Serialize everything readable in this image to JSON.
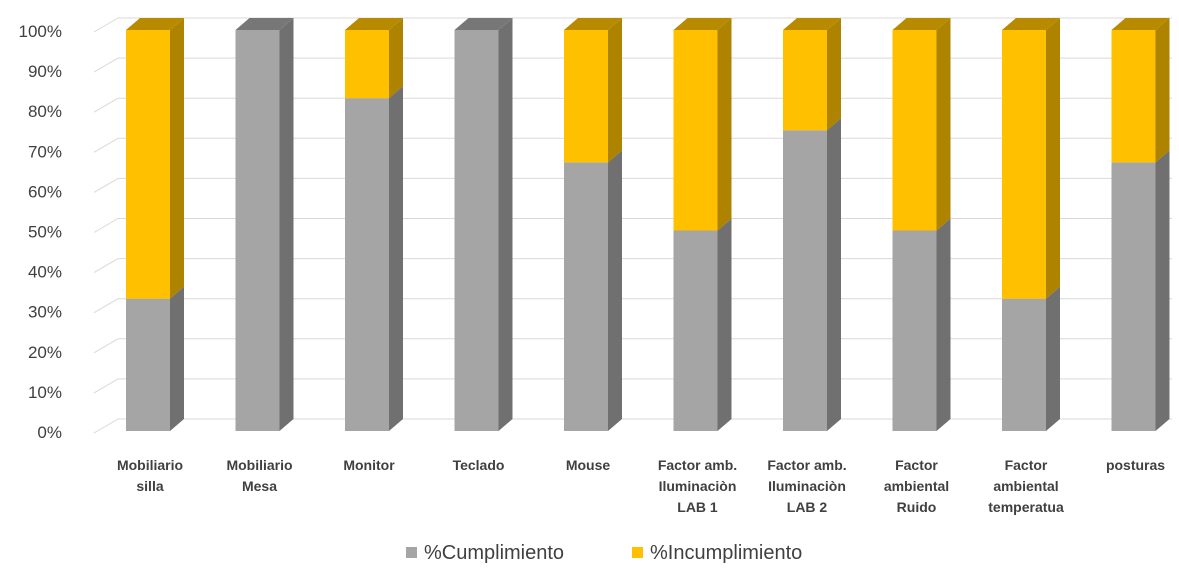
{
  "chart_data": {
    "type": "bar",
    "stacked": true,
    "percent_stacked": true,
    "three_d": true,
    "categories": [
      [
        "Mobiliario",
        "silla"
      ],
      [
        "Mobiliario",
        "Mesa"
      ],
      [
        "Monitor"
      ],
      [
        "Teclado"
      ],
      [
        "Mouse"
      ],
      [
        "Factor amb.",
        "Iluminaciòn",
        "LAB 1"
      ],
      [
        "Factor amb.",
        "Iluminaciòn",
        "LAB 2"
      ],
      [
        "Factor",
        "ambiental",
        "Ruido"
      ],
      [
        "Factor",
        "ambiental",
        "temperatua"
      ],
      [
        "posturas"
      ]
    ],
    "series": [
      {
        "name": "%Cumplimiento",
        "color": "#a5a5a5",
        "values": [
          33,
          100,
          83,
          100,
          67,
          50,
          75,
          50,
          33,
          67
        ]
      },
      {
        "name": "%Incumplimiento",
        "color": "#ffc000",
        "values": [
          67,
          0,
          17,
          0,
          33,
          50,
          25,
          50,
          67,
          33
        ]
      }
    ],
    "y_ticks": [
      "0%",
      "10%",
      "20%",
      "30%",
      "40%",
      "50%",
      "60%",
      "70%",
      "80%",
      "90%",
      "100%"
    ],
    "ylim": [
      0,
      100
    ],
    "grid": true,
    "legend": "bottom"
  }
}
